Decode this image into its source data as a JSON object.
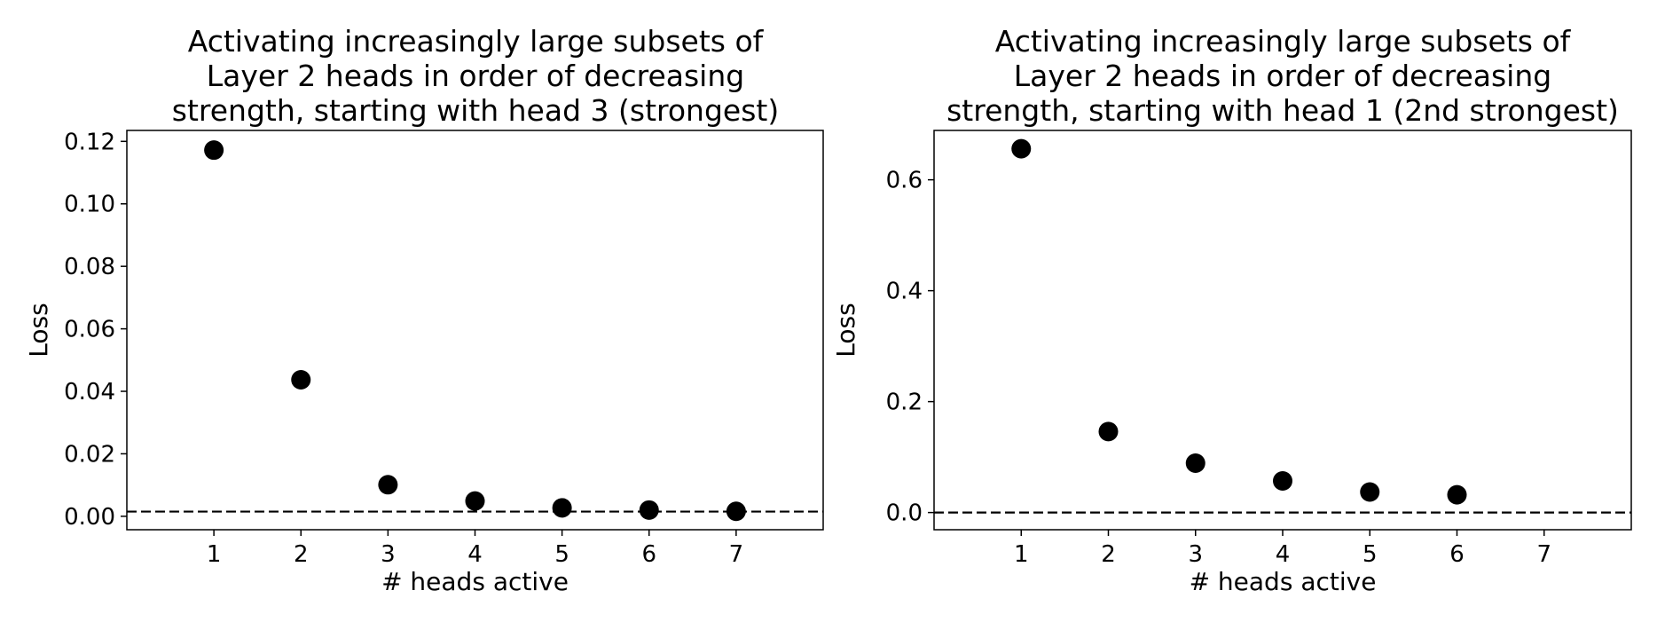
{
  "chart_data": [
    {
      "type": "scatter",
      "title": [
        "Activating increasingly large subsets of",
        "Layer 2 heads in order of decreasing",
        "strength, starting with head 3 (strongest)"
      ],
      "xlabel": "# heads active",
      "ylabel": "Loss",
      "xlim": [
        0,
        8
      ],
      "ylim": [
        -0.0043,
        0.1235
      ],
      "xticks": [
        1,
        2,
        3,
        4,
        5,
        6,
        7
      ],
      "xticklabels": [
        "1",
        "2",
        "3",
        "4",
        "5",
        "6",
        "7"
      ],
      "yticks": [
        0.0,
        0.02,
        0.04,
        0.06,
        0.08,
        0.1,
        0.12
      ],
      "yticklabels": [
        "0.00",
        "0.02",
        "0.04",
        "0.06",
        "0.08",
        "0.10",
        "0.12"
      ],
      "x": [
        1,
        2,
        3,
        4,
        5,
        6,
        7
      ],
      "y": [
        0.1172,
        0.0437,
        0.0101,
        0.0049,
        0.0027,
        0.002,
        0.0016
      ],
      "reference_line": {
        "y": 0.0015,
        "style": "dashed"
      },
      "marker_color": "#000000",
      "grid": false,
      "legend": "none"
    },
    {
      "type": "scatter",
      "title": [
        "Activating increasingly large subsets of",
        "Layer 2 heads in order of decreasing",
        "strength, starting with head 1 (2nd strongest)"
      ],
      "xlabel": "# heads active",
      "ylabel": "Loss",
      "xlim": [
        0,
        8
      ],
      "ylim": [
        -0.031,
        0.689
      ],
      "xticks": [
        1,
        2,
        3,
        4,
        5,
        6,
        7
      ],
      "xticklabels": [
        "1",
        "2",
        "3",
        "4",
        "5",
        "6",
        "7"
      ],
      "yticks": [
        0.0,
        0.2,
        0.4,
        0.6
      ],
      "yticklabels": [
        "0.0",
        "0.2",
        "0.4",
        "0.6"
      ],
      "x": [
        1,
        2,
        3,
        4,
        5,
        6
      ],
      "y": [
        0.656,
        0.146,
        0.089,
        0.057,
        0.037,
        0.032
      ],
      "reference_line": {
        "y": 0.0,
        "style": "dashed"
      },
      "marker_color": "#000000",
      "grid": false,
      "legend": "none"
    }
  ]
}
